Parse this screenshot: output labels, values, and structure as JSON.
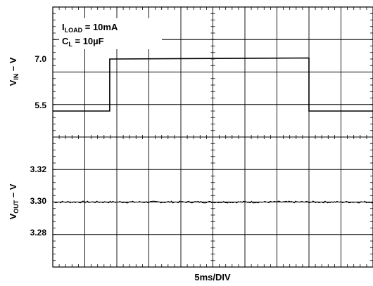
{
  "chart_data": [
    {
      "type": "line",
      "panel": "top",
      "ylabel": {
        "main": "V",
        "sub": "IN",
        "unit": " – V"
      },
      "y_ticks": [
        {
          "label": "7.0",
          "value": 7.0
        },
        {
          "label": "5.5",
          "value": 5.5
        }
      ],
      "ylim": [
        4.75,
        8.5
      ],
      "annotations": [
        {
          "main": "I",
          "sub": "LOAD",
          "rest": " = 10mA"
        },
        {
          "main": "C",
          "sub": "L",
          "rest": " = 10µF"
        }
      ],
      "series": [
        {
          "x": [
            0,
            4.0,
            4.0,
            18.0,
            18.0,
            22.5
          ],
          "y": [
            5.5,
            5.5,
            7.0,
            7.0,
            5.5,
            5.5
          ]
        }
      ]
    },
    {
      "type": "line",
      "panel": "bottom",
      "ylabel": {
        "main": "V",
        "sub": "OUT",
        "unit": " – V"
      },
      "y_ticks": [
        {
          "label": "3.32",
          "value": 3.32
        },
        {
          "label": "3.30",
          "value": 3.3
        },
        {
          "label": "3.28",
          "value": 3.28
        }
      ],
      "ylim": [
        3.26,
        3.34
      ],
      "series": [
        {
          "x_start": 0,
          "x_end": 22.5,
          "y": 3.3
        }
      ]
    }
  ],
  "xlabel": "5ms/DIV",
  "grid": {
    "x_divisions": 10,
    "y_divisions": 8
  }
}
